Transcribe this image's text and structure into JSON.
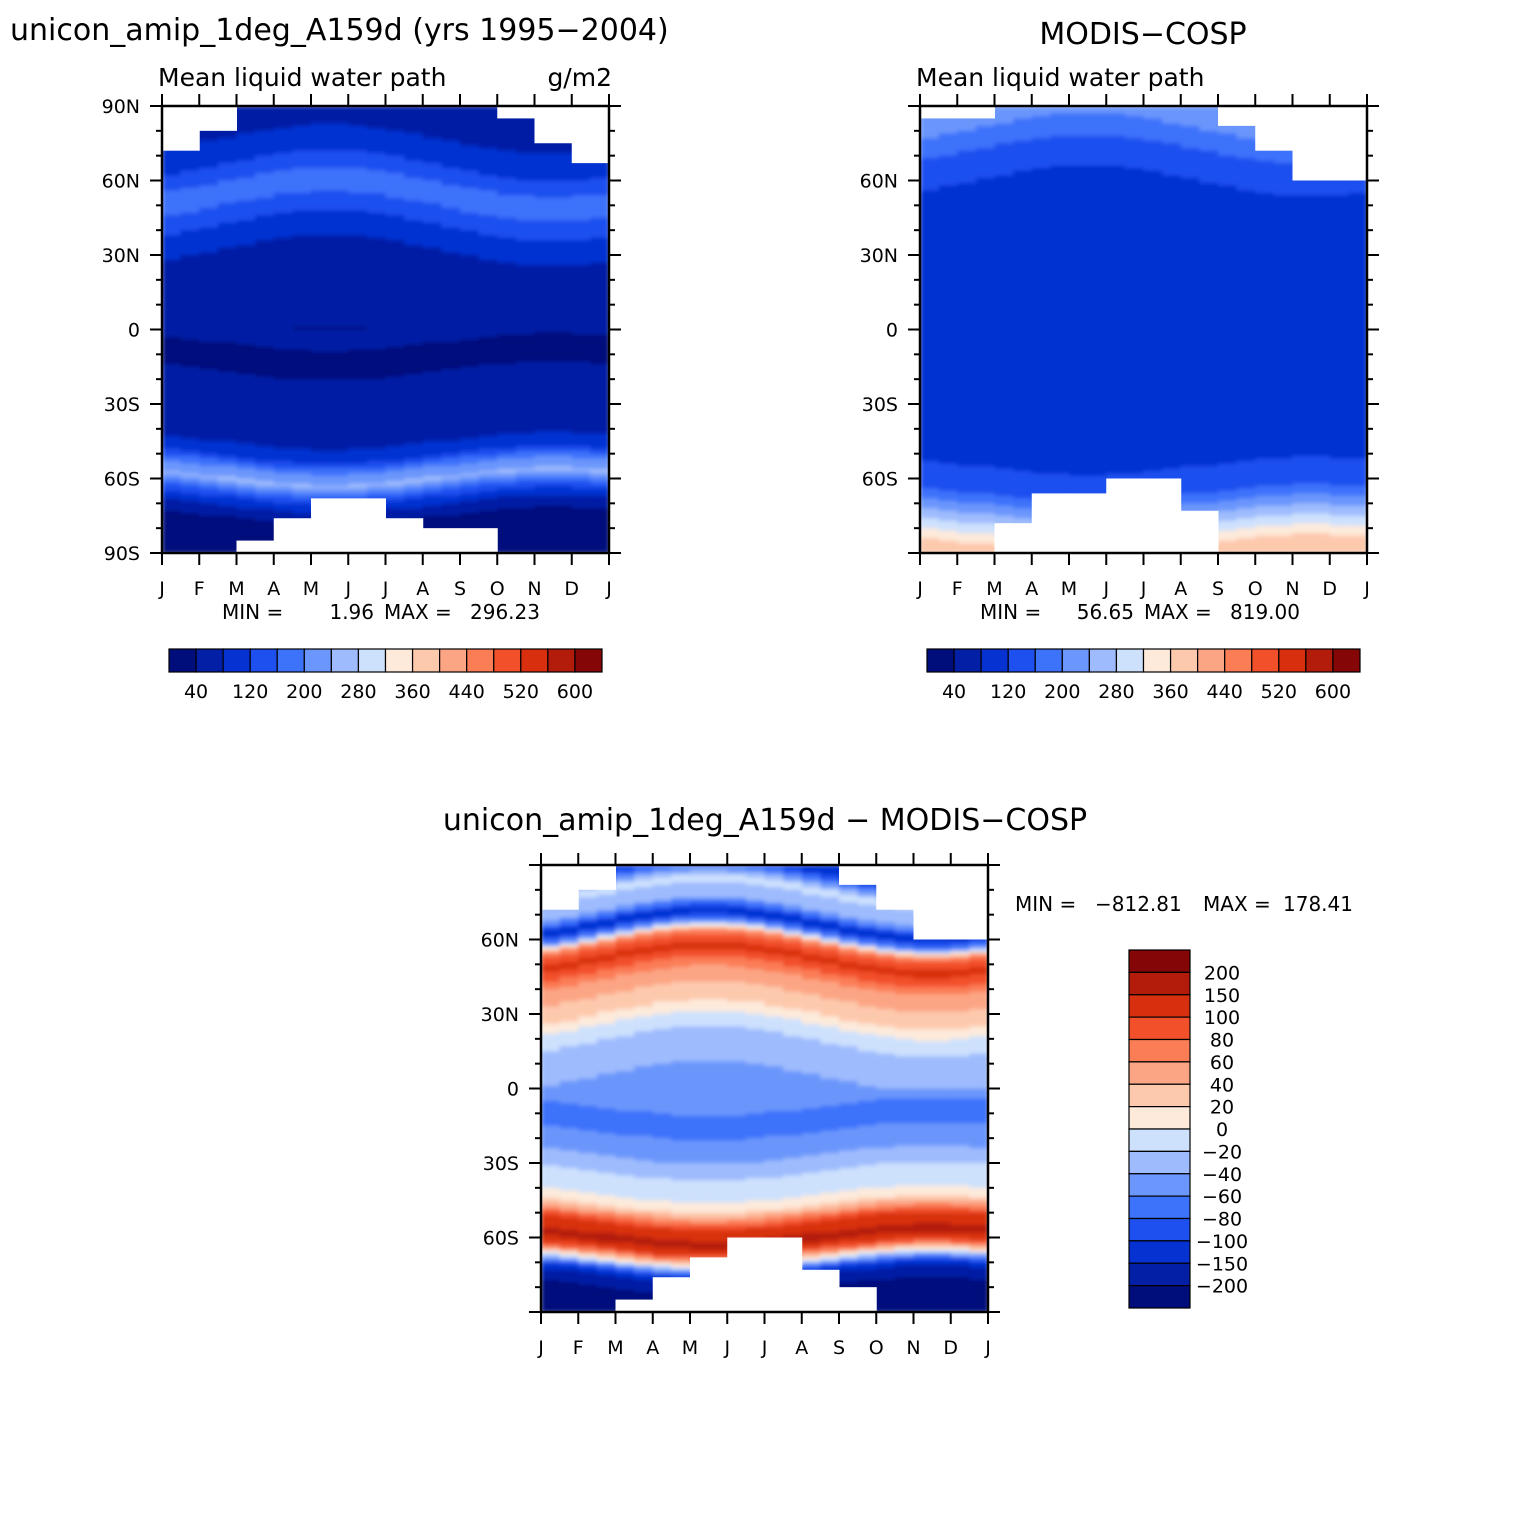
{
  "palettes": {
    "field": [
      "#000e7b",
      "#031fa5",
      "#0632d2",
      "#1e4fef",
      "#3d72fb",
      "#6b96fc",
      "#9ebbfd",
      "#cde1fd",
      "#fdeadb",
      "#fdc9ad",
      "#fca584",
      "#fb7d56",
      "#f2502b",
      "#d8300f",
      "#b31c0a",
      "#840606"
    ],
    "diff": [
      "#000e7b",
      "#031fa5",
      "#0632d2",
      "#1e4fef",
      "#3d72fb",
      "#6b96fc",
      "#9ebbfd",
      "#cde1fd",
      "#fdeadb",
      "#fdc9ad",
      "#fca584",
      "#fb7d56",
      "#f2502b",
      "#d8300f",
      "#b31c0a",
      "#840606"
    ]
  },
  "chart_data": [
    {
      "id": "model",
      "type": "heatmap",
      "title": "unicon_amip_1deg_A159d (yrs 1995−2004)",
      "subtitle": "Mean liquid water path",
      "units": "g/m2",
      "x_ticks": [
        "J",
        "F",
        "M",
        "A",
        "M",
        "J",
        "J",
        "A",
        "S",
        "O",
        "N",
        "D",
        "J"
      ],
      "y_ticks": [
        "90N",
        "60N",
        "30N",
        "0",
        "30S",
        "60S",
        "90S"
      ],
      "ylim": [
        -90,
        90
      ],
      "stats": {
        "min_label": "MIN =",
        "min": "1.96",
        "max_label": "MAX =",
        "max": "296.23"
      },
      "colorbar": {
        "levels": [
          0,
          40,
          80,
          120,
          160,
          200,
          240,
          280,
          320,
          360,
          400,
          440,
          480,
          520,
          560,
          600,
          640
        ],
        "labels": [
          "40",
          "120",
          "200",
          "280",
          "360",
          "440",
          "520",
          "600"
        ]
      },
      "bands": [
        {
          "lat": -85,
          "v": 20
        },
        {
          "lat": -75,
          "v": 40
        },
        {
          "lat": -69,
          "v": 90
        },
        {
          "lat": -65,
          "v": 150
        },
        {
          "lat": -60,
          "v": 250
        },
        {
          "lat": -55,
          "v": 200
        },
        {
          "lat": -50,
          "v": 110
        },
        {
          "lat": -45,
          "v": 80
        },
        {
          "lat": -38,
          "v": 60
        },
        {
          "lat": -30,
          "v": 50
        },
        {
          "lat": -10,
          "v": 35
        },
        {
          "lat": 0,
          "v": 45
        },
        {
          "lat": 15,
          "v": 45
        },
        {
          "lat": 25,
          "v": 60
        },
        {
          "lat": 32,
          "v": 80
        },
        {
          "lat": 40,
          "v": 110
        },
        {
          "lat": 48,
          "v": 150
        },
        {
          "lat": 55,
          "v": 190
        },
        {
          "lat": 62,
          "v": 140
        },
        {
          "lat": 70,
          "v": 100
        },
        {
          "lat": 80,
          "v": 70
        },
        {
          "lat": 90,
          "v": 55
        }
      ],
      "mask": [
        [
          0,
          72,
          90
        ],
        [
          1,
          80,
          90
        ],
        [
          9,
          85,
          90
        ],
        [
          10,
          75,
          90
        ],
        [
          11,
          67,
          90
        ],
        [
          2,
          -90,
          -85
        ],
        [
          3,
          -90,
          -76
        ],
        [
          4,
          -90,
          -68
        ],
        [
          5,
          -90,
          -68
        ],
        [
          6,
          -90,
          -76
        ],
        [
          7,
          -90,
          -80
        ],
        [
          8,
          -90,
          -80
        ]
      ]
    },
    {
      "id": "obs",
      "type": "heatmap",
      "title": "MODIS−COSP",
      "subtitle": "Mean liquid water path",
      "x_ticks": [
        "J",
        "F",
        "M",
        "A",
        "M",
        "J",
        "J",
        "A",
        "S",
        "O",
        "N",
        "D",
        "J"
      ],
      "y_ticks": [
        "60N",
        "30N",
        "0",
        "30S",
        "60S"
      ],
      "ylim": [
        -90,
        90
      ],
      "stats": {
        "min_label": "MIN =",
        "min": "56.65",
        "max_label": "MAX =",
        "max": "819.00"
      },
      "colorbar": {
        "levels": [
          0,
          40,
          80,
          120,
          160,
          200,
          240,
          280,
          320,
          360,
          400,
          440,
          480,
          520,
          560,
          600,
          640
        ],
        "labels": [
          "40",
          "120",
          "200",
          "280",
          "360",
          "440",
          "520",
          "600"
        ]
      },
      "bands": [
        {
          "lat": -88,
          "v": 380
        },
        {
          "lat": -80,
          "v": 300
        },
        {
          "lat": -72,
          "v": 220
        },
        {
          "lat": -66,
          "v": 160
        },
        {
          "lat": -60,
          "v": 130
        },
        {
          "lat": -50,
          "v": 110
        },
        {
          "lat": -40,
          "v": 100
        },
        {
          "lat": -25,
          "v": 95
        },
        {
          "lat": -5,
          "v": 90
        },
        {
          "lat": 5,
          "v": 85
        },
        {
          "lat": 15,
          "v": 88
        },
        {
          "lat": 30,
          "v": 95
        },
        {
          "lat": 45,
          "v": 100
        },
        {
          "lat": 55,
          "v": 110
        },
        {
          "lat": 65,
          "v": 130
        },
        {
          "lat": 75,
          "v": 170
        },
        {
          "lat": 85,
          "v": 220
        }
      ],
      "mask": [
        [
          0,
          85,
          90
        ],
        [
          1,
          85,
          90
        ],
        [
          8,
          82,
          90
        ],
        [
          9,
          72,
          90
        ],
        [
          10,
          60,
          90
        ],
        [
          11,
          60,
          90
        ],
        [
          2,
          -90,
          -78
        ],
        [
          3,
          -90,
          -66
        ],
        [
          4,
          -90,
          -66
        ],
        [
          5,
          -90,
          -60
        ],
        [
          6,
          -90,
          -60
        ],
        [
          7,
          -90,
          -73
        ]
      ]
    },
    {
      "id": "diff",
      "type": "heatmap",
      "title": "unicon_amip_1deg_A159d − MODIS−COSP",
      "x_ticks": [
        "J",
        "F",
        "M",
        "A",
        "M",
        "J",
        "J",
        "A",
        "S",
        "O",
        "N",
        "D",
        "J"
      ],
      "y_ticks": [
        "60N",
        "30N",
        "0",
        "30S",
        "60S"
      ],
      "ylim": [
        -90,
        90
      ],
      "stats": {
        "min_label": "MIN =",
        "max_label": "MAX =",
        "min": "−812.81",
        "max": "178.41"
      },
      "colorbar": {
        "levels": [
          -250,
          -200,
          -150,
          -100,
          -80,
          -60,
          -40,
          -20,
          0,
          20,
          40,
          60,
          80,
          100,
          150,
          200,
          250
        ],
        "labels": [
          "200",
          "150",
          "100",
          "80",
          "60",
          "40",
          "20",
          "0",
          "−20",
          "−40",
          "−60",
          "−80",
          "−100",
          "−150",
          "−200"
        ]
      },
      "bands": [
        {
          "lat": -88,
          "v": -250
        },
        {
          "lat": -76,
          "v": -180
        },
        {
          "lat": -70,
          "v": -40
        },
        {
          "lat": -66,
          "v": 60
        },
        {
          "lat": -60,
          "v": 170
        },
        {
          "lat": -55,
          "v": 120
        },
        {
          "lat": -50,
          "v": 60
        },
        {
          "lat": -45,
          "v": 5
        },
        {
          "lat": -35,
          "v": -15
        },
        {
          "lat": -25,
          "v": -45
        },
        {
          "lat": -12,
          "v": -70
        },
        {
          "lat": 0,
          "v": -45
        },
        {
          "lat": 10,
          "v": -35
        },
        {
          "lat": 22,
          "v": -15
        },
        {
          "lat": 32,
          "v": 30
        },
        {
          "lat": 42,
          "v": 50
        },
        {
          "lat": 52,
          "v": 110
        },
        {
          "lat": 58,
          "v": 70
        },
        {
          "lat": 62,
          "v": -60
        },
        {
          "lat": 66,
          "v": -120
        },
        {
          "lat": 72,
          "v": -30
        },
        {
          "lat": 80,
          "v": -15
        },
        {
          "lat": 88,
          "v": -120
        }
      ],
      "mask": [
        [
          0,
          72,
          90
        ],
        [
          1,
          80,
          90
        ],
        [
          8,
          82,
          90
        ],
        [
          9,
          72,
          90
        ],
        [
          10,
          60,
          90
        ],
        [
          11,
          60,
          90
        ],
        [
          2,
          -90,
          -85
        ],
        [
          3,
          -90,
          -76
        ],
        [
          4,
          -90,
          -68
        ],
        [
          5,
          -90,
          -60
        ],
        [
          6,
          -90,
          -60
        ],
        [
          7,
          -90,
          -73
        ],
        [
          8,
          -90,
          -80
        ]
      ]
    }
  ]
}
